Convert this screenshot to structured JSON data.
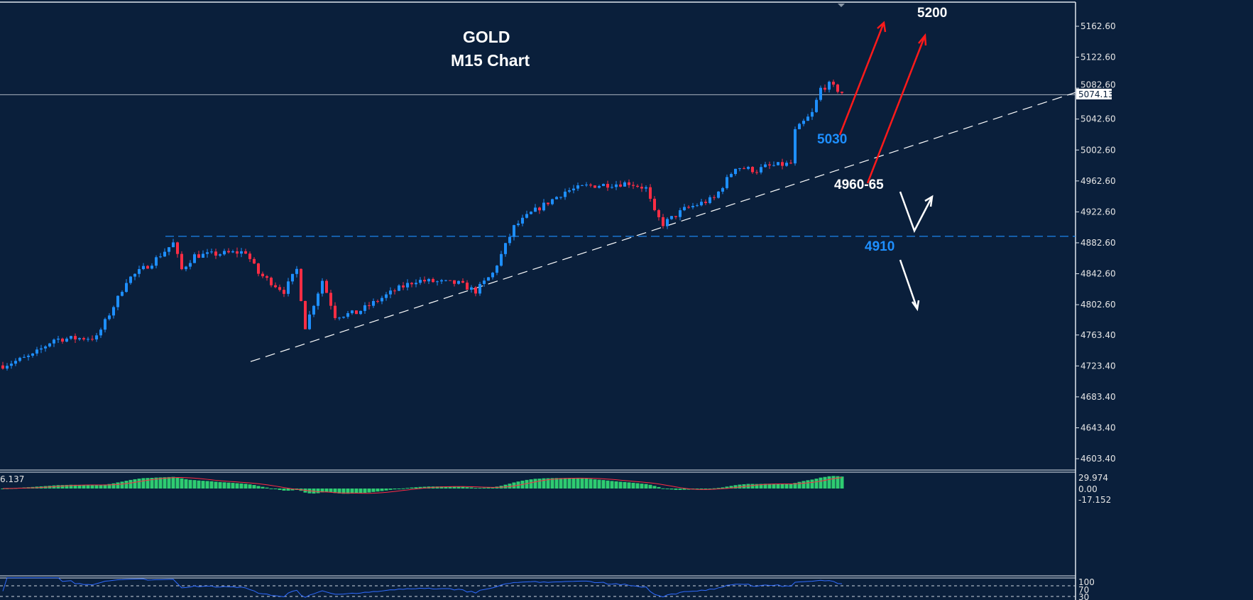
{
  "chart_data": {
    "type": "candlestick",
    "title": "GOLD",
    "subtitle": "M15 Chart",
    "xlabel": "",
    "ylabel": "",
    "ylim": [
      4590,
      5190
    ],
    "y_ticks": [
      "5162.60",
      "5122.60",
      "5082.60",
      "5042.60",
      "5002.60",
      "4962.60",
      "4922.60",
      "4882.60",
      "4842.60",
      "4802.60",
      "4763.40",
      "4723.40",
      "4683.40",
      "4643.40",
      "4603.40"
    ],
    "current_price": "5074.13",
    "grid": false,
    "close_path": [
      [
        0,
        4724
      ],
      [
        7,
        4737
      ],
      [
        12,
        4758
      ],
      [
        22,
        4760
      ],
      [
        27,
        4811
      ],
      [
        29,
        4834
      ],
      [
        35,
        4857
      ],
      [
        40,
        4882
      ],
      [
        42,
        4848
      ],
      [
        45,
        4866
      ],
      [
        57,
        4871
      ],
      [
        60,
        4843
      ],
      [
        66,
        4820
      ],
      [
        69,
        4848
      ],
      [
        71,
        4774
      ],
      [
        75,
        4834
      ],
      [
        78,
        4788
      ],
      [
        83,
        4792
      ],
      [
        92,
        4821
      ],
      [
        97,
        4834
      ],
      [
        107,
        4830
      ],
      [
        111,
        4820
      ],
      [
        115,
        4843
      ],
      [
        120,
        4903
      ],
      [
        124,
        4921
      ],
      [
        132,
        4949
      ],
      [
        137,
        4956
      ],
      [
        147,
        4960
      ],
      [
        151,
        4953
      ],
      [
        153,
        4921
      ],
      [
        155,
        4907
      ],
      [
        160,
        4926
      ],
      [
        167,
        4940
      ],
      [
        172,
        4981
      ],
      [
        177,
        4976
      ],
      [
        179,
        4981
      ],
      [
        185,
        4985
      ],
      [
        186,
        5027
      ],
      [
        190,
        5050
      ],
      [
        192,
        5082
      ],
      [
        194,
        5087
      ],
      [
        197,
        5077
      ]
    ],
    "trendline": {
      "from_price": 4729,
      "to_price": 5077,
      "style": "dashed",
      "color": "#ffffff"
    },
    "horizontal_level": {
      "price": 4891,
      "style": "dashed",
      "color": "#1e8fff"
    },
    "annotations": [
      {
        "text": "5200",
        "color": "#ffffff"
      },
      {
        "text": "5030",
        "color": "#1e8fff"
      },
      {
        "text": "4960-65",
        "color": "#ffffff"
      },
      {
        "text": "4910",
        "color": "#1e8fff"
      }
    ],
    "arrows_color": {
      "bull": "#ff1a1a",
      "scenario": "#ffffff"
    },
    "candle_colors": {
      "up": "#1e8fff",
      "down": "#ff2d44"
    },
    "macd": {
      "label": "6.137",
      "ticks": [
        "29.974",
        "0.00",
        "-17.152"
      ],
      "hist_color": "#2ecc71",
      "signal_color": "#ff2d44"
    },
    "rsi": {
      "ticks": [
        "100",
        "70",
        "30"
      ],
      "line_color": "#2f6bff"
    }
  }
}
